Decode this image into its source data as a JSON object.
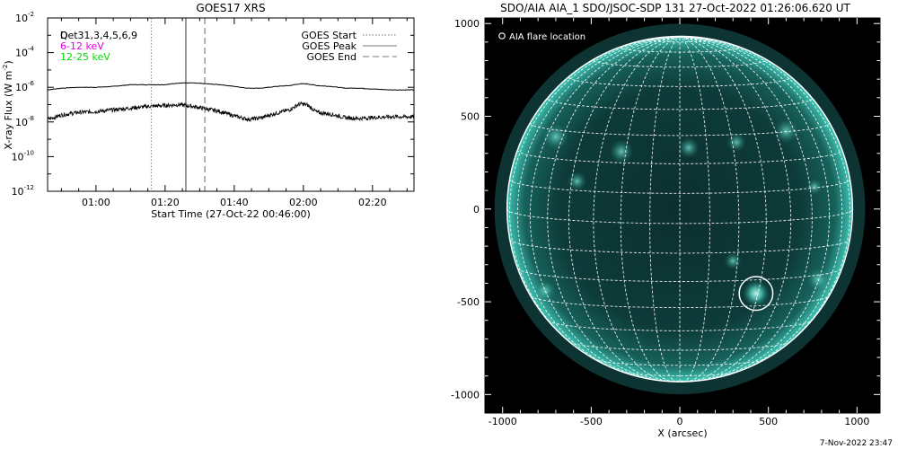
{
  "chart_data": [
    {
      "type": "line",
      "title": "GOES17 XRS",
      "xlabel": "Start Time (27-Oct-22 00:46:00)",
      "ylabel_main": "X-ray Flux (W m",
      "ylabel_sup": "-2",
      "ylabel_close": ")",
      "y_scale": "log",
      "ylim_exp": [
        -12,
        -2
      ],
      "y_ticks": [
        {
          "base": "10",
          "exp": "-2",
          "value": -2
        },
        {
          "base": "10",
          "exp": "-4",
          "value": -4
        },
        {
          "base": "10",
          "exp": "-6",
          "value": -6
        },
        {
          "base": "10",
          "exp": "-8",
          "value": -8
        },
        {
          "base": "10",
          "exp": "-10",
          "value": -10
        },
        {
          "base": "10",
          "exp": "-12",
          "value": -12
        }
      ],
      "xlim_min": [
        46,
        152
      ],
      "x_ticks": [
        {
          "label": "01:00",
          "min": 60
        },
        {
          "label": "01:20",
          "min": 80
        },
        {
          "label": "01:40",
          "min": 100
        },
        {
          "label": "02:00",
          "min": 120
        },
        {
          "label": "02:20",
          "min": 140
        }
      ],
      "channels_text": "Det31,3,4,5,6,9",
      "channels_overlap": "Q",
      "energy_labels": [
        {
          "text": "6-12 keV",
          "color": "#e000e0"
        },
        {
          "text": "12-25 keV",
          "color": "#00dd00"
        }
      ],
      "legend": [
        {
          "text": "GOES Start",
          "style": "dotted"
        },
        {
          "text": "GOES Peak",
          "style": "solid"
        },
        {
          "text": "GOES End",
          "style": "dashed"
        }
      ],
      "event_lines_min": {
        "start": 76,
        "peak": 86,
        "end": 91.5
      },
      "series": [
        {
          "channel": "long",
          "x": [
            46,
            50,
            55,
            60,
            65,
            70,
            75,
            80,
            84,
            88,
            92,
            96,
            100,
            104,
            108,
            112,
            116,
            119,
            121,
            124,
            128,
            132,
            136,
            140,
            145,
            152
          ],
          "y_log10": [
            -6.15,
            -6.05,
            -6.0,
            -6.0,
            -5.95,
            -5.85,
            -5.85,
            -5.85,
            -5.75,
            -5.75,
            -5.8,
            -5.85,
            -5.95,
            -6.05,
            -6.05,
            -5.95,
            -5.9,
            -5.8,
            -5.8,
            -5.9,
            -5.95,
            -6.05,
            -6.05,
            -6.1,
            -6.15,
            -6.15
          ]
        },
        {
          "channel": "short",
          "x": [
            46,
            50,
            55,
            60,
            65,
            70,
            75,
            80,
            84,
            88,
            92,
            96,
            100,
            104,
            108,
            112,
            116,
            119,
            121,
            124,
            128,
            132,
            136,
            140,
            145,
            152
          ],
          "y_log10": [
            -7.85,
            -7.6,
            -7.45,
            -7.4,
            -7.3,
            -7.2,
            -7.1,
            -7.05,
            -7.0,
            -7.1,
            -7.25,
            -7.4,
            -7.65,
            -7.85,
            -7.75,
            -7.5,
            -7.3,
            -6.95,
            -7.0,
            -7.45,
            -7.55,
            -7.75,
            -7.8,
            -7.75,
            -7.7,
            -7.7
          ]
        }
      ]
    },
    {
      "type": "scatter",
      "title": "SDO/AIA AIA_1 SDO/JSOC-SDP 131 27-Oct-2022 01:26:06.620 UT",
      "xlabel": "X (arcsec)",
      "ylabel": "",
      "xlim": [
        -1100,
        1130
      ],
      "ylim": [
        -1100,
        1030
      ],
      "x_ticks": [
        -1000,
        -500,
        0,
        500,
        1000
      ],
      "y_ticks": [
        1000,
        500,
        0,
        -500,
        -1000
      ],
      "solar_radius_arcsec": 975,
      "legend": [
        "AIA flare location"
      ],
      "flare_location": {
        "x": 430,
        "y": -455,
        "radius": 95
      },
      "disk_color": "#0c3a38",
      "limb_color": "#3fc6b6"
    }
  ],
  "footer": {
    "timestamp": "7-Nov-2022 23:47"
  }
}
